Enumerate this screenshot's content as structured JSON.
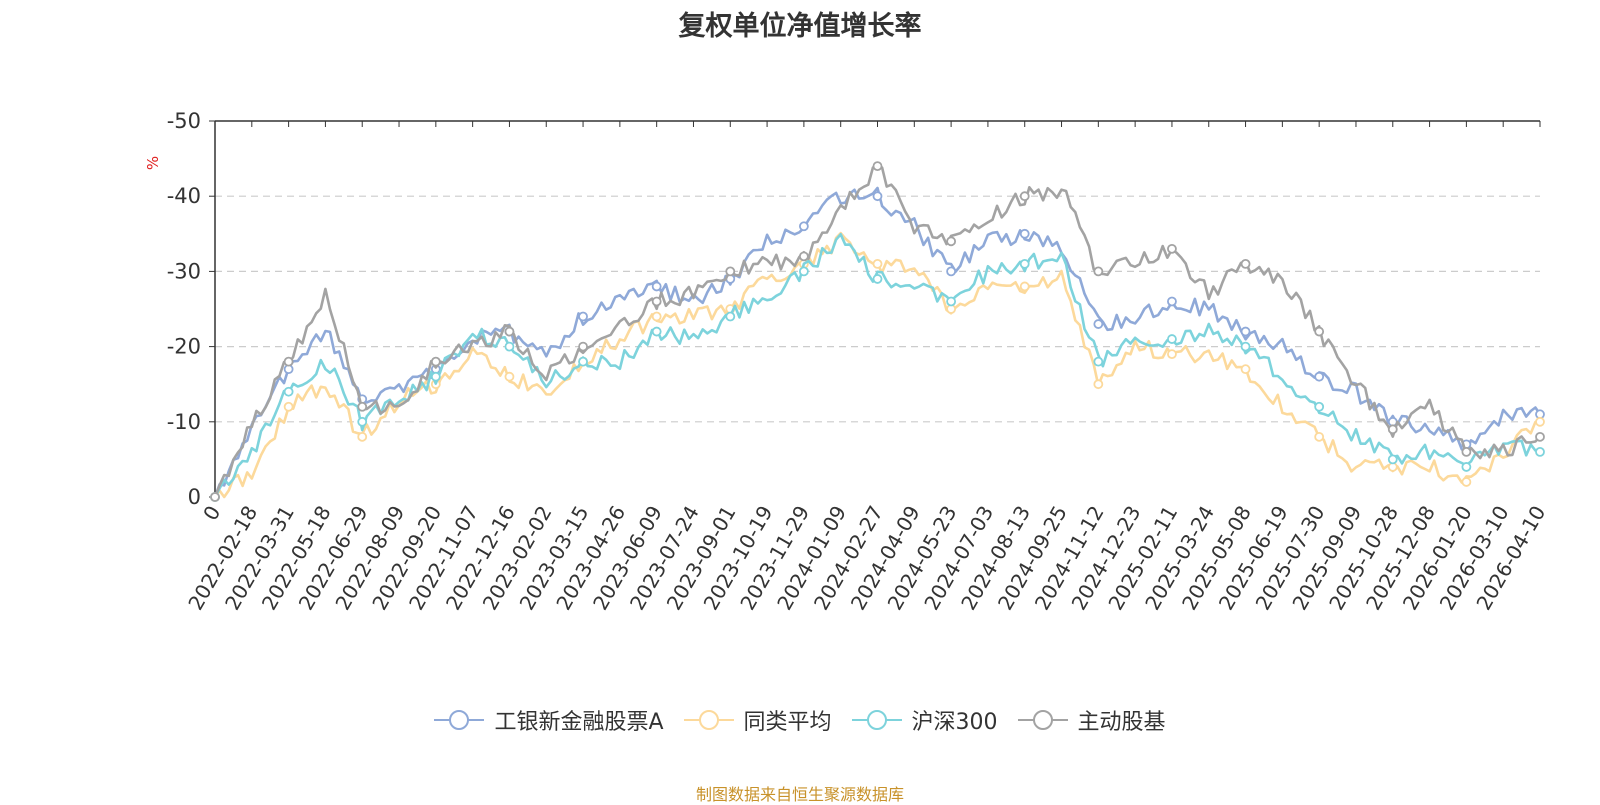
{
  "title": "复权单位净值增长率",
  "source_note": "制图数据来自恒生聚源数据库",
  "chart_data": {
    "type": "line",
    "title": "复权单位净值增长率",
    "ylabel": "%",
    "ylim": [
      -50,
      0
    ],
    "yticks": [
      0,
      -10,
      -20,
      -30,
      -40,
      -50
    ],
    "grid": true,
    "legend_position": "bottom-center",
    "categories": [
      "0",
      "2022-02-18",
      "2022-03-31",
      "2022-05-18",
      "2022-06-29",
      "2022-08-09",
      "2022-09-20",
      "2022-11-07",
      "2022-12-16",
      "2023-02-02",
      "2023-03-15",
      "2023-04-26",
      "2023-06-09",
      "2023-07-24",
      "2023-09-01",
      "2023-10-19",
      "2023-11-29",
      "2024-01-09",
      "2024-02-27",
      "2024-04-09",
      "2024-05-23",
      "2024-07-03",
      "2024-08-13",
      "2024-09-25",
      "2024-11-12",
      "2024-12-23",
      "2025-02-11",
      "2025-03-24",
      "2025-05-08",
      "2025-06-19",
      "2025-07-30",
      "2025-09-09",
      "2025-10-28",
      "2025-12-08",
      "2026-01-20",
      "2026-03-10",
      "2026-04-10"
    ],
    "series": [
      {
        "name": "工银新金融股票A",
        "color": "#8fa9d8",
        "values": [
          0,
          -9,
          -17,
          -22,
          -13,
          -14,
          -17,
          -21,
          -22,
          -19,
          -24,
          -26,
          -28,
          -26,
          -29,
          -34,
          -36,
          -40,
          -40,
          -36,
          -30,
          -34,
          -35,
          -33,
          -23,
          -24,
          -26,
          -25,
          -22,
          -20,
          -16,
          -14,
          -10,
          -9,
          -7,
          -11,
          -11
        ]
      },
      {
        "name": "同类平均",
        "color": "#fcd99b",
        "values": [
          0,
          -3,
          -12,
          -15,
          -8,
          -13,
          -15,
          -19,
          -16,
          -14,
          -18,
          -21,
          -24,
          -24,
          -25,
          -29,
          -31,
          -34,
          -31,
          -30,
          -25,
          -28,
          -28,
          -29,
          -15,
          -20,
          -19,
          -19,
          -17,
          -12,
          -8,
          -4,
          -4,
          -4,
          -2,
          -6,
          -10
        ]
      },
      {
        "name": "沪深300",
        "color": "#7dd3dc",
        "values": [
          0,
          -6,
          -14,
          -18,
          -10,
          -13,
          -16,
          -22,
          -20,
          -15,
          -18,
          -18,
          -22,
          -21,
          -24,
          -27,
          -30,
          -34,
          -29,
          -28,
          -26,
          -30,
          -31,
          -32,
          -18,
          -21,
          -21,
          -22,
          -20,
          -16,
          -12,
          -8,
          -5,
          -6,
          -4,
          -7,
          -6
        ]
      },
      {
        "name": "主动股基",
        "color": "#a3a3a3",
        "values": [
          0,
          -10,
          -18,
          -27,
          -12,
          -12,
          -18,
          -20,
          -22,
          -16,
          -20,
          -23,
          -26,
          -27,
          -30,
          -31,
          -32,
          -38,
          -44,
          -36,
          -34,
          -37,
          -40,
          -41,
          -30,
          -31,
          -33,
          -27,
          -31,
          -29,
          -22,
          -15,
          -9,
          -12,
          -6,
          -6,
          -8
        ]
      }
    ]
  }
}
